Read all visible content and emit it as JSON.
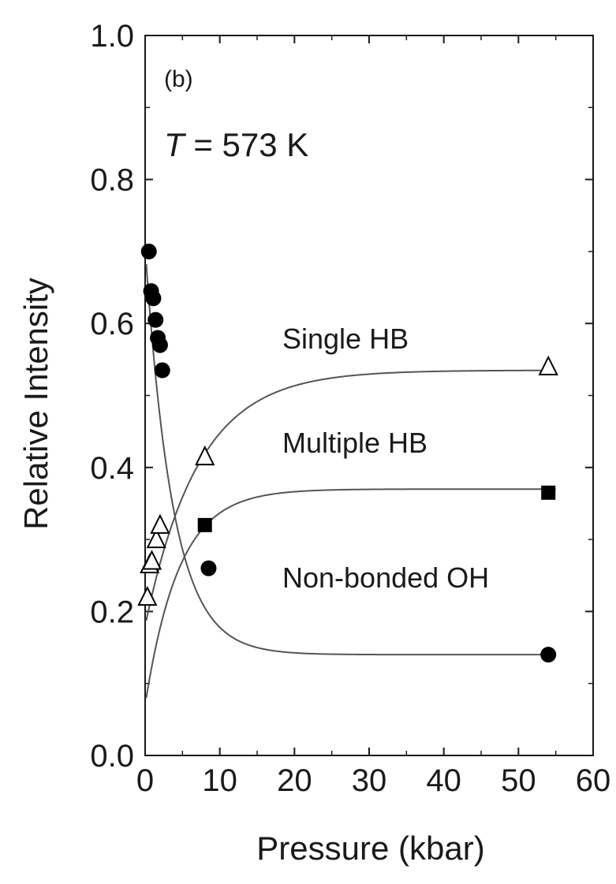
{
  "chart_data": {
    "type": "scatter",
    "title": "",
    "xlabel": "Pressure (kbar)",
    "ylabel": "Relative Intensity",
    "xlim": [
      0,
      60
    ],
    "ylim": [
      0.0,
      1.0
    ],
    "x_ticks": [
      "0",
      "10",
      "20",
      "30",
      "40",
      "50",
      "60"
    ],
    "y_ticks": [
      "0.0",
      "0.2",
      "0.4",
      "0.6",
      "0.8",
      "1.0"
    ],
    "x_tick_values": [
      0,
      10,
      20,
      30,
      40,
      50,
      60
    ],
    "y_tick_values": [
      0.0,
      0.2,
      0.4,
      0.6,
      0.8,
      1.0
    ],
    "grid": false,
    "annotations": {
      "panel": "(b)",
      "temperature_symbol": "T",
      "temperature_value": " = 573 K",
      "single_label": "Single HB",
      "multiple_label": "Multiple HB",
      "nonbonded_label": "Non-bonded OH"
    },
    "series": [
      {
        "marker": "open-triangle",
        "x": [
          0.3,
          0.6,
          0.9,
          1.5,
          2.0,
          8.0,
          54.0
        ],
        "y": [
          0.22,
          0.265,
          0.27,
          0.3,
          0.32,
          0.415,
          0.54
        ]
      },
      {
        "marker": "filled-square",
        "x": [
          8.0,
          54.0
        ],
        "y": [
          0.32,
          0.365
        ]
      },
      {
        "marker": "filled-circle",
        "x": [
          0.5,
          0.8,
          1.1,
          1.4,
          1.7,
          2.0,
          2.3,
          8.5,
          54.0
        ],
        "y": [
          0.7,
          0.645,
          0.635,
          0.605,
          0.58,
          0.57,
          0.535,
          0.26,
          0.14
        ]
      }
    ],
    "fits": [
      {
        "name": "single-fit",
        "a": 0.535,
        "b": 0.355,
        "k": 0.14
      },
      {
        "name": "multiple-fit",
        "a": 0.37,
        "b": 0.3,
        "k": 0.22
      },
      {
        "name": "nonbonded-fit",
        "a": 0.14,
        "b": 0.565,
        "k": 0.27
      }
    ],
    "colors": {
      "axis": "#1a1a1a",
      "marker": "#000000",
      "curve": "#555555"
    }
  }
}
